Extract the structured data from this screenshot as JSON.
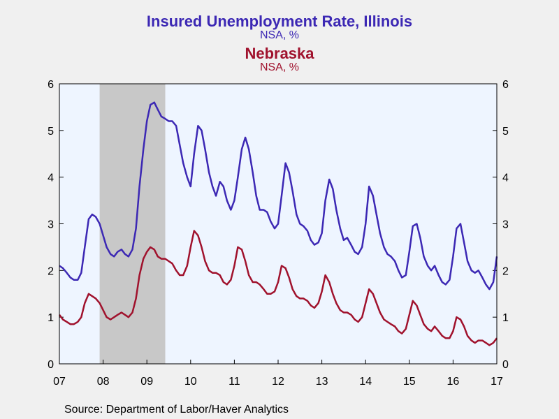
{
  "chart_data": {
    "type": "line",
    "title": "Insured Unemployment Rate, Illinois",
    "subtitle": "NSA, %",
    "second_title": "Nebraska",
    "second_subtitle": "NSA, %",
    "source": "Source:  Department of Labor/Haver Analytics",
    "x_range": [
      2007.0,
      2017.0
    ],
    "ylim": [
      0,
      6
    ],
    "yticks": [
      "0",
      "1",
      "2",
      "3",
      "4",
      "5",
      "6"
    ],
    "xticks": [
      {
        "x": 2007,
        "label": "07"
      },
      {
        "x": 2008,
        "label": "08"
      },
      {
        "x": 2009,
        "label": "09"
      },
      {
        "x": 2010,
        "label": "10"
      },
      {
        "x": 2011,
        "label": "11"
      },
      {
        "x": 2012,
        "label": "12"
      },
      {
        "x": 2013,
        "label": "13"
      },
      {
        "x": 2014,
        "label": "14"
      },
      {
        "x": 2015,
        "label": "15"
      },
      {
        "x": 2016,
        "label": "16"
      },
      {
        "x": 2017,
        "label": "17"
      }
    ],
    "recession": {
      "start": 2007.92,
      "end": 2009.42,
      "color": "#c8c8c8"
    },
    "plot_bg": "#eef5ff",
    "series": [
      {
        "name": "Illinois",
        "color": "#3c28b4",
        "x": [
          2007.0,
          2007.08,
          2007.17,
          2007.25,
          2007.33,
          2007.42,
          2007.5,
          2007.58,
          2007.67,
          2007.75,
          2007.83,
          2007.92,
          2008.0,
          2008.08,
          2008.17,
          2008.25,
          2008.33,
          2008.42,
          2008.5,
          2008.58,
          2008.67,
          2008.75,
          2008.83,
          2008.92,
          2009.0,
          2009.08,
          2009.17,
          2009.25,
          2009.33,
          2009.42,
          2009.5,
          2009.58,
          2009.67,
          2009.75,
          2009.83,
          2009.92,
          2010.0,
          2010.08,
          2010.17,
          2010.25,
          2010.33,
          2010.42,
          2010.5,
          2010.58,
          2010.67,
          2010.75,
          2010.83,
          2010.92,
          2011.0,
          2011.08,
          2011.17,
          2011.25,
          2011.33,
          2011.42,
          2011.5,
          2011.58,
          2011.67,
          2011.75,
          2011.83,
          2011.92,
          2012.0,
          2012.08,
          2012.17,
          2012.25,
          2012.33,
          2012.42,
          2012.5,
          2012.58,
          2012.67,
          2012.75,
          2012.83,
          2012.92,
          2013.0,
          2013.08,
          2013.17,
          2013.25,
          2013.33,
          2013.42,
          2013.5,
          2013.58,
          2013.67,
          2013.75,
          2013.83,
          2013.92,
          2014.0,
          2014.08,
          2014.17,
          2014.25,
          2014.33,
          2014.42,
          2014.5,
          2014.58,
          2014.67,
          2014.75,
          2014.83,
          2014.92,
          2015.0,
          2015.08,
          2015.17,
          2015.25,
          2015.33,
          2015.42,
          2015.5,
          2015.58,
          2015.67,
          2015.75,
          2015.83,
          2015.92,
          2016.0,
          2016.08,
          2016.17,
          2016.25,
          2016.33,
          2016.42,
          2016.5,
          2016.58,
          2016.67,
          2016.75,
          2016.83,
          2016.92,
          2017.0
        ],
        "values": [
          2.1,
          2.05,
          1.95,
          1.85,
          1.8,
          1.8,
          1.95,
          2.5,
          3.1,
          3.2,
          3.15,
          3.0,
          2.75,
          2.5,
          2.35,
          2.3,
          2.4,
          2.45,
          2.35,
          2.3,
          2.45,
          2.9,
          3.8,
          4.6,
          5.2,
          5.55,
          5.6,
          5.45,
          5.3,
          5.25,
          5.2,
          5.2,
          5.1,
          4.7,
          4.3,
          4.0,
          3.8,
          4.5,
          5.1,
          5.0,
          4.6,
          4.1,
          3.8,
          3.6,
          3.9,
          3.8,
          3.5,
          3.3,
          3.5,
          4.0,
          4.6,
          4.85,
          4.6,
          4.1,
          3.6,
          3.3,
          3.3,
          3.25,
          3.05,
          2.9,
          3.0,
          3.6,
          4.3,
          4.1,
          3.7,
          3.2,
          3.0,
          2.95,
          2.85,
          2.65,
          2.55,
          2.6,
          2.8,
          3.5,
          3.95,
          3.75,
          3.3,
          2.9,
          2.65,
          2.7,
          2.55,
          2.4,
          2.35,
          2.5,
          3.0,
          3.8,
          3.6,
          3.2,
          2.8,
          2.5,
          2.35,
          2.3,
          2.2,
          2.0,
          1.85,
          1.9,
          2.4,
          2.95,
          3.0,
          2.7,
          2.3,
          2.1,
          2.0,
          2.1,
          1.9,
          1.75,
          1.7,
          1.8,
          2.3,
          2.9,
          3.0,
          2.6,
          2.2,
          2.0,
          1.95,
          2.0,
          1.85,
          1.7,
          1.6,
          1.75,
          2.3
        ]
      },
      {
        "name": "Nebraska",
        "color": "#a0122d",
        "x": [
          2007.0,
          2007.08,
          2007.17,
          2007.25,
          2007.33,
          2007.42,
          2007.5,
          2007.58,
          2007.67,
          2007.75,
          2007.83,
          2007.92,
          2008.0,
          2008.08,
          2008.17,
          2008.25,
          2008.33,
          2008.42,
          2008.5,
          2008.58,
          2008.67,
          2008.75,
          2008.83,
          2008.92,
          2009.0,
          2009.08,
          2009.17,
          2009.25,
          2009.33,
          2009.42,
          2009.5,
          2009.58,
          2009.67,
          2009.75,
          2009.83,
          2009.92,
          2010.0,
          2010.08,
          2010.17,
          2010.25,
          2010.33,
          2010.42,
          2010.5,
          2010.58,
          2010.67,
          2010.75,
          2010.83,
          2010.92,
          2011.0,
          2011.08,
          2011.17,
          2011.25,
          2011.33,
          2011.42,
          2011.5,
          2011.58,
          2011.67,
          2011.75,
          2011.83,
          2011.92,
          2012.0,
          2012.08,
          2012.17,
          2012.25,
          2012.33,
          2012.42,
          2012.5,
          2012.58,
          2012.67,
          2012.75,
          2012.83,
          2012.92,
          2013.0,
          2013.08,
          2013.17,
          2013.25,
          2013.33,
          2013.42,
          2013.5,
          2013.58,
          2013.67,
          2013.75,
          2013.83,
          2013.92,
          2014.0,
          2014.08,
          2014.17,
          2014.25,
          2014.33,
          2014.42,
          2014.5,
          2014.58,
          2014.67,
          2014.75,
          2014.83,
          2014.92,
          2015.0,
          2015.08,
          2015.17,
          2015.25,
          2015.33,
          2015.42,
          2015.5,
          2015.58,
          2015.67,
          2015.75,
          2015.83,
          2015.92,
          2016.0,
          2016.08,
          2016.17,
          2016.25,
          2016.33,
          2016.42,
          2016.5,
          2016.58,
          2016.67,
          2016.75,
          2016.83,
          2016.92,
          2017.0
        ],
        "values": [
          1.05,
          0.95,
          0.9,
          0.85,
          0.85,
          0.9,
          1.0,
          1.3,
          1.5,
          1.45,
          1.4,
          1.3,
          1.15,
          1.0,
          0.95,
          1.0,
          1.05,
          1.1,
          1.05,
          1.0,
          1.1,
          1.4,
          1.9,
          2.25,
          2.4,
          2.5,
          2.45,
          2.3,
          2.25,
          2.25,
          2.2,
          2.15,
          2.0,
          1.9,
          1.9,
          2.1,
          2.5,
          2.85,
          2.75,
          2.5,
          2.2,
          2.0,
          1.95,
          1.95,
          1.9,
          1.75,
          1.7,
          1.8,
          2.1,
          2.5,
          2.45,
          2.2,
          1.9,
          1.75,
          1.75,
          1.7,
          1.6,
          1.5,
          1.5,
          1.55,
          1.75,
          2.1,
          2.05,
          1.85,
          1.6,
          1.45,
          1.4,
          1.4,
          1.35,
          1.25,
          1.2,
          1.3,
          1.55,
          1.9,
          1.75,
          1.5,
          1.3,
          1.15,
          1.1,
          1.1,
          1.05,
          0.95,
          0.9,
          1.0,
          1.3,
          1.6,
          1.5,
          1.3,
          1.1,
          0.95,
          0.9,
          0.85,
          0.8,
          0.7,
          0.65,
          0.75,
          1.05,
          1.35,
          1.25,
          1.05,
          0.85,
          0.75,
          0.7,
          0.8,
          0.7,
          0.6,
          0.55,
          0.55,
          0.7,
          1.0,
          0.95,
          0.8,
          0.6,
          0.5,
          0.45,
          0.5,
          0.5,
          0.45,
          0.4,
          0.45,
          0.55
        ]
      }
    ]
  }
}
